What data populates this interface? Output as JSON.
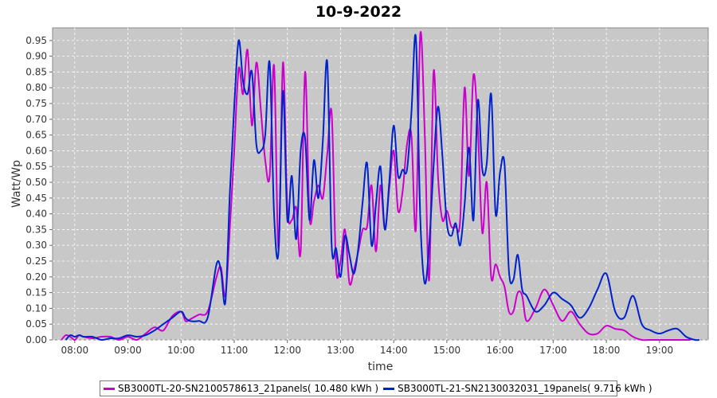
{
  "chart_data": {
    "type": "line",
    "title": "10-9-2022",
    "xlabel": "time",
    "ylabel": "Watt/Wp",
    "xlim": [
      "07:35",
      "19:55"
    ],
    "ylim": [
      0,
      0.99
    ],
    "yticks": [
      0.0,
      0.05,
      0.1,
      0.15,
      0.2,
      0.25,
      0.3,
      0.35,
      0.4,
      0.45,
      0.5,
      0.55,
      0.6,
      0.65,
      0.7,
      0.75,
      0.8,
      0.85,
      0.9,
      0.95
    ],
    "ytick_labels": [
      "0.00",
      "0.05",
      "0.10",
      "0.15",
      "0.20",
      "0.25",
      "0.30",
      "0.35",
      "0.40",
      "0.45",
      "0.50",
      "0.55",
      "0.60",
      "0.65",
      "0.70",
      "0.75",
      "0.80",
      "0.85",
      "0.90",
      "0.95"
    ],
    "xtick_labels": [
      "08:00",
      "09:00",
      "10:00",
      "11:00",
      "12:00",
      "13:00",
      "14:00",
      "15:00",
      "16:00",
      "17:00",
      "18:00",
      "19:00"
    ],
    "grid": true,
    "plot_background": "#c8c8c8",
    "legend_position": "bottom",
    "series": [
      {
        "name": "SB3000TL-20-SN2100578613_21panels( 10.480 kWh )",
        "color": "#cc00cc",
        "x": [
          "07:45",
          "07:50",
          "07:55",
          "08:00",
          "08:05",
          "08:10",
          "08:20",
          "08:30",
          "08:40",
          "08:50",
          "09:00",
          "09:10",
          "09:20",
          "09:30",
          "09:40",
          "09:50",
          "10:00",
          "10:05",
          "10:10",
          "10:20",
          "10:30",
          "10:40",
          "10:45",
          "10:50",
          "10:55",
          "11:00",
          "11:05",
          "11:10",
          "11:15",
          "11:20",
          "11:25",
          "11:30",
          "11:35",
          "11:40",
          "11:45",
          "11:50",
          "11:55",
          "12:00",
          "12:05",
          "12:10",
          "12:15",
          "12:20",
          "12:25",
          "12:30",
          "12:35",
          "12:40",
          "12:45",
          "12:50",
          "12:55",
          "13:00",
          "13:05",
          "13:10",
          "13:15",
          "13:20",
          "13:25",
          "13:30",
          "13:35",
          "13:40",
          "13:45",
          "13:50",
          "13:55",
          "14:00",
          "14:05",
          "14:10",
          "14:15",
          "14:20",
          "14:25",
          "14:30",
          "14:35",
          "14:40",
          "14:45",
          "14:50",
          "14:55",
          "15:00",
          "15:05",
          "15:10",
          "15:15",
          "15:20",
          "15:25",
          "15:30",
          "15:35",
          "15:40",
          "15:45",
          "15:50",
          "15:55",
          "16:00",
          "16:05",
          "16:10",
          "16:15",
          "16:20",
          "16:25",
          "16:30",
          "16:40",
          "16:50",
          "17:00",
          "17:10",
          "17:20",
          "17:30",
          "17:40",
          "17:50",
          "18:00",
          "18:10",
          "18:20",
          "18:30",
          "18:40",
          "18:50",
          "19:00",
          "19:10",
          "19:20",
          "19:30",
          "19:35"
        ],
        "values": [
          0.0,
          0.015,
          0.01,
          0.0,
          0.015,
          0.01,
          0.005,
          0.01,
          0.01,
          0.0,
          0.01,
          0.0,
          0.02,
          0.04,
          0.03,
          0.075,
          0.09,
          0.06,
          0.065,
          0.08,
          0.09,
          0.2,
          0.23,
          0.14,
          0.35,
          0.6,
          0.86,
          0.78,
          0.92,
          0.68,
          0.88,
          0.73,
          0.57,
          0.52,
          0.87,
          0.29,
          0.88,
          0.42,
          0.38,
          0.42,
          0.28,
          0.85,
          0.39,
          0.44,
          0.49,
          0.45,
          0.59,
          0.72,
          0.23,
          0.25,
          0.35,
          0.18,
          0.22,
          0.28,
          0.35,
          0.36,
          0.49,
          0.28,
          0.49,
          0.35,
          0.48,
          0.6,
          0.41,
          0.47,
          0.62,
          0.65,
          0.35,
          0.97,
          0.66,
          0.19,
          0.85,
          0.52,
          0.38,
          0.41,
          0.36,
          0.36,
          0.38,
          0.8,
          0.52,
          0.84,
          0.67,
          0.34,
          0.5,
          0.2,
          0.24,
          0.2,
          0.17,
          0.09,
          0.09,
          0.15,
          0.14,
          0.06,
          0.1,
          0.16,
          0.11,
          0.06,
          0.09,
          0.05,
          0.02,
          0.02,
          0.045,
          0.035,
          0.03,
          0.01,
          0.0,
          0.0,
          0.0,
          0.0,
          0.0,
          0.0,
          0.0
        ]
      },
      {
        "name": "SB3000TL-21-SN2130032031_19panels( 9.716 kWh )",
        "color": "#0022cc",
        "x": [
          "07:50",
          "07:55",
          "08:00",
          "08:05",
          "08:10",
          "08:20",
          "08:30",
          "08:40",
          "08:50",
          "09:00",
          "09:10",
          "09:20",
          "09:30",
          "09:40",
          "09:50",
          "10:00",
          "10:05",
          "10:10",
          "10:20",
          "10:30",
          "10:40",
          "10:45",
          "10:50",
          "10:55",
          "11:00",
          "11:05",
          "11:10",
          "11:15",
          "11:20",
          "11:25",
          "11:30",
          "11:35",
          "11:40",
          "11:45",
          "11:50",
          "11:55",
          "12:00",
          "12:05",
          "12:10",
          "12:15",
          "12:20",
          "12:25",
          "12:30",
          "12:35",
          "12:40",
          "12:45",
          "12:50",
          "12:55",
          "13:00",
          "13:05",
          "13:10",
          "13:15",
          "13:20",
          "13:25",
          "13:30",
          "13:35",
          "13:40",
          "13:45",
          "13:50",
          "13:55",
          "14:00",
          "14:05",
          "14:10",
          "14:15",
          "14:20",
          "14:25",
          "14:30",
          "14:35",
          "14:40",
          "14:45",
          "14:50",
          "14:55",
          "15:00",
          "15:05",
          "15:10",
          "15:15",
          "15:20",
          "15:25",
          "15:30",
          "15:35",
          "15:40",
          "15:45",
          "15:50",
          "15:55",
          "16:00",
          "16:05",
          "16:10",
          "16:15",
          "16:20",
          "16:25",
          "16:30",
          "16:40",
          "16:50",
          "17:00",
          "17:10",
          "17:20",
          "17:30",
          "17:40",
          "17:50",
          "18:00",
          "18:10",
          "18:20",
          "18:30",
          "18:40",
          "18:50",
          "19:00",
          "19:10",
          "19:20",
          "19:30",
          "19:40",
          "19:45"
        ],
        "values": [
          0.0,
          0.015,
          0.01,
          0.015,
          0.01,
          0.01,
          0.0,
          0.005,
          0.005,
          0.015,
          0.01,
          0.015,
          0.03,
          0.05,
          0.07,
          0.09,
          0.07,
          0.06,
          0.06,
          0.07,
          0.24,
          0.22,
          0.12,
          0.46,
          0.74,
          0.95,
          0.82,
          0.78,
          0.85,
          0.62,
          0.6,
          0.65,
          0.88,
          0.4,
          0.28,
          0.79,
          0.38,
          0.52,
          0.32,
          0.6,
          0.64,
          0.38,
          0.57,
          0.45,
          0.63,
          0.88,
          0.3,
          0.29,
          0.2,
          0.33,
          0.27,
          0.21,
          0.29,
          0.44,
          0.56,
          0.3,
          0.43,
          0.55,
          0.35,
          0.5,
          0.68,
          0.52,
          0.54,
          0.54,
          0.72,
          0.96,
          0.39,
          0.18,
          0.3,
          0.55,
          0.74,
          0.58,
          0.37,
          0.33,
          0.37,
          0.3,
          0.43,
          0.61,
          0.38,
          0.76,
          0.54,
          0.56,
          0.78,
          0.4,
          0.53,
          0.56,
          0.22,
          0.19,
          0.27,
          0.16,
          0.14,
          0.09,
          0.11,
          0.15,
          0.13,
          0.11,
          0.07,
          0.1,
          0.16,
          0.21,
          0.09,
          0.07,
          0.14,
          0.05,
          0.03,
          0.02,
          0.03,
          0.035,
          0.01,
          0.0,
          0.0
        ]
      }
    ]
  }
}
